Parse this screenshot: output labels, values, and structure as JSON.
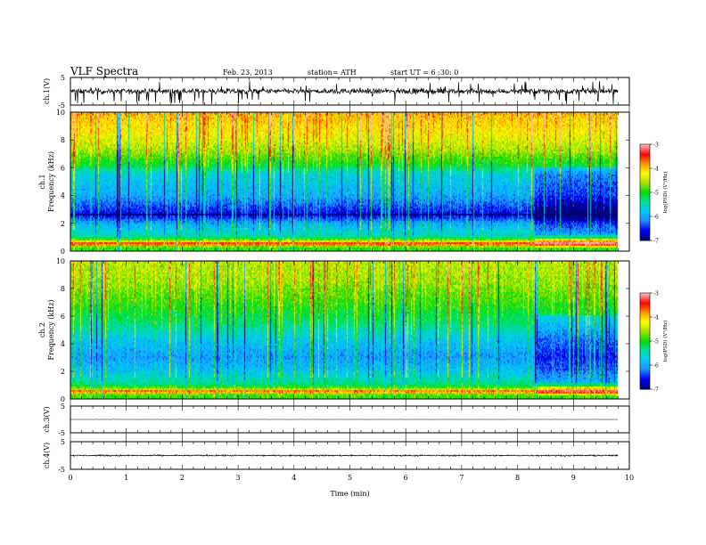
{
  "header": {
    "title": "VLF  Spectra",
    "date": "Feb. 23, 2013",
    "station": "station= ATH",
    "start": "start  UT =    6  :30: 0"
  },
  "colors": {
    "colormap": [
      "#000070",
      "#0000ff",
      "#1e90ff",
      "#00c8ff",
      "#00e0a0",
      "#00dd00",
      "#a8e000",
      "#ffff00",
      "#ff9900",
      "#ff0000",
      "#ffb4b4"
    ],
    "waveform": "#000000"
  },
  "chart_data": {
    "type": "heatmap",
    "xlabel": "Time  (min)",
    "xlim": [
      0,
      10
    ],
    "x_ticks": [
      "0",
      "1",
      "2",
      "3",
      "4",
      "5",
      "6",
      "7",
      "8",
      "9",
      "10"
    ],
    "record_end_min": 9.8,
    "panels": [
      {
        "id": "ch1-waveform",
        "type": "line",
        "ylabel": "ch.1(V)",
        "ylim": [
          -5,
          5
        ],
        "y_ticks": [
          "5",
          "-5"
        ],
        "amplitude_V": 1.2
      },
      {
        "id": "ch1-spectrogram",
        "type": "heatmap",
        "ylabel": "ch.1\nFrequency  (kHz)",
        "ylim": [
          0,
          10
        ],
        "y_ticks": [
          "0",
          "2",
          "4",
          "6",
          "8",
          "10"
        ],
        "colorbar": {
          "label": "log(PSD) (V²/Hz)",
          "range": [
            -7,
            -3
          ],
          "ticks": [
            "-3",
            "-4",
            "-5",
            "-6",
            "-7"
          ]
        },
        "level_profile": [
          {
            "freq_khz": 0.25,
            "logpsd": -4.9
          },
          {
            "freq_khz": 0.6,
            "logpsd": -4.0
          },
          {
            "freq_khz": 1.0,
            "logpsd": -5.4
          },
          {
            "freq_khz": 2.0,
            "logpsd": -6.0
          },
          {
            "freq_khz": 2.6,
            "logpsd": -6.7
          },
          {
            "freq_khz": 4.0,
            "logpsd": -6.0
          },
          {
            "freq_khz": 5.5,
            "logpsd": -5.7
          },
          {
            "freq_khz": 6.2,
            "logpsd": -5.1
          },
          {
            "freq_khz": 7.2,
            "logpsd": -4.6
          },
          {
            "freq_khz": 8.5,
            "logpsd": -4.2
          },
          {
            "freq_khz": 10.0,
            "logpsd": -3.9
          }
        ]
      },
      {
        "id": "ch2-spectrogram",
        "type": "heatmap",
        "ylabel": "ch.2\nFrequency  (kHz)",
        "ylim": [
          0,
          10
        ],
        "y_ticks": [
          "0",
          "2",
          "4",
          "6",
          "8",
          "10"
        ],
        "colorbar": {
          "label": "log(PSD) (V²/Hz)",
          "range": [
            -7,
            -3
          ],
          "ticks": [
            "-3",
            "-4",
            "-5",
            "-6",
            "-7"
          ]
        },
        "level_profile": [
          {
            "freq_khz": 0.25,
            "logpsd": -4.9
          },
          {
            "freq_khz": 0.6,
            "logpsd": -4.3
          },
          {
            "freq_khz": 1.0,
            "logpsd": -5.3
          },
          {
            "freq_khz": 2.0,
            "logpsd": -5.8
          },
          {
            "freq_khz": 3.0,
            "logpsd": -6.1
          },
          {
            "freq_khz": 4.2,
            "logpsd": -5.8
          },
          {
            "freq_khz": 5.5,
            "logpsd": -5.3
          },
          {
            "freq_khz": 7.0,
            "logpsd": -4.9
          },
          {
            "freq_khz": 8.5,
            "logpsd": -4.6
          },
          {
            "freq_khz": 10.0,
            "logpsd": -4.5
          }
        ]
      },
      {
        "id": "ch3-waveform",
        "type": "line",
        "ylabel": "ch.3(V)",
        "ylim": [
          -5,
          5
        ],
        "y_ticks": [
          "5",
          "-5"
        ],
        "amplitude_V": 0.05
      },
      {
        "id": "ch4-waveform",
        "type": "line",
        "ylabel": "ch.4(V)",
        "ylim": [
          -5,
          5
        ],
        "y_ticks": [
          "5",
          "-5"
        ],
        "amplitude_V": 0.3
      }
    ]
  }
}
